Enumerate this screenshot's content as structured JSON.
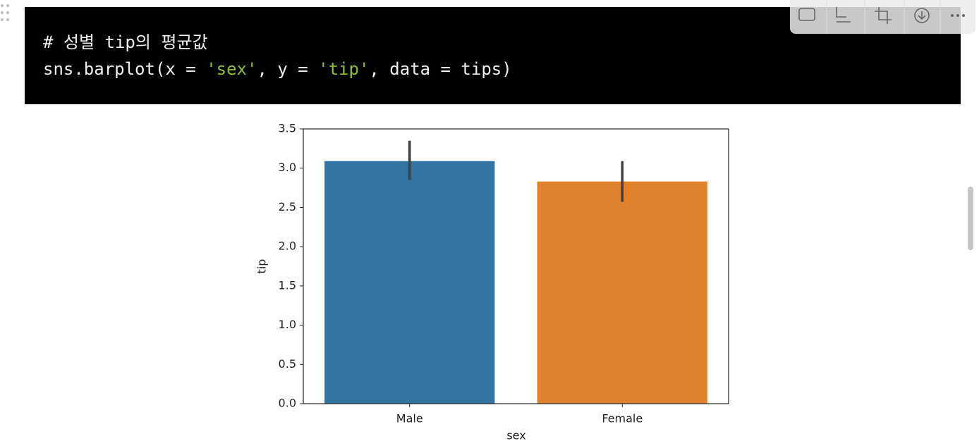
{
  "toolbar": {
    "copy": "Copy"
  },
  "code": {
    "comment": "# 성별 tip의 평균값",
    "line": [
      "sns.barplot(x = ",
      "'sex'",
      ", y = ",
      "'tip'",
      ", data = tips)"
    ]
  },
  "chart_data": {
    "type": "bar",
    "x_label": "sex",
    "y_label": "tip",
    "categories": [
      "Male",
      "Female"
    ],
    "values": [
      3.09,
      2.83
    ],
    "ci": [
      [
        2.85,
        3.35
      ],
      [
        2.57,
        3.09
      ]
    ],
    "colors": [
      "#3274a1",
      "#e1812c"
    ],
    "ylim": [
      0,
      3.5
    ],
    "yticks": [
      {
        "value": 0,
        "label": "0.0"
      },
      0.5,
      {
        "value": 1,
        "label": "1.0"
      },
      1.5,
      {
        "value": 2,
        "label": "2.0"
      },
      2.5,
      {
        "value": 3,
        "label": "3.0"
      },
      3.5
    ]
  }
}
